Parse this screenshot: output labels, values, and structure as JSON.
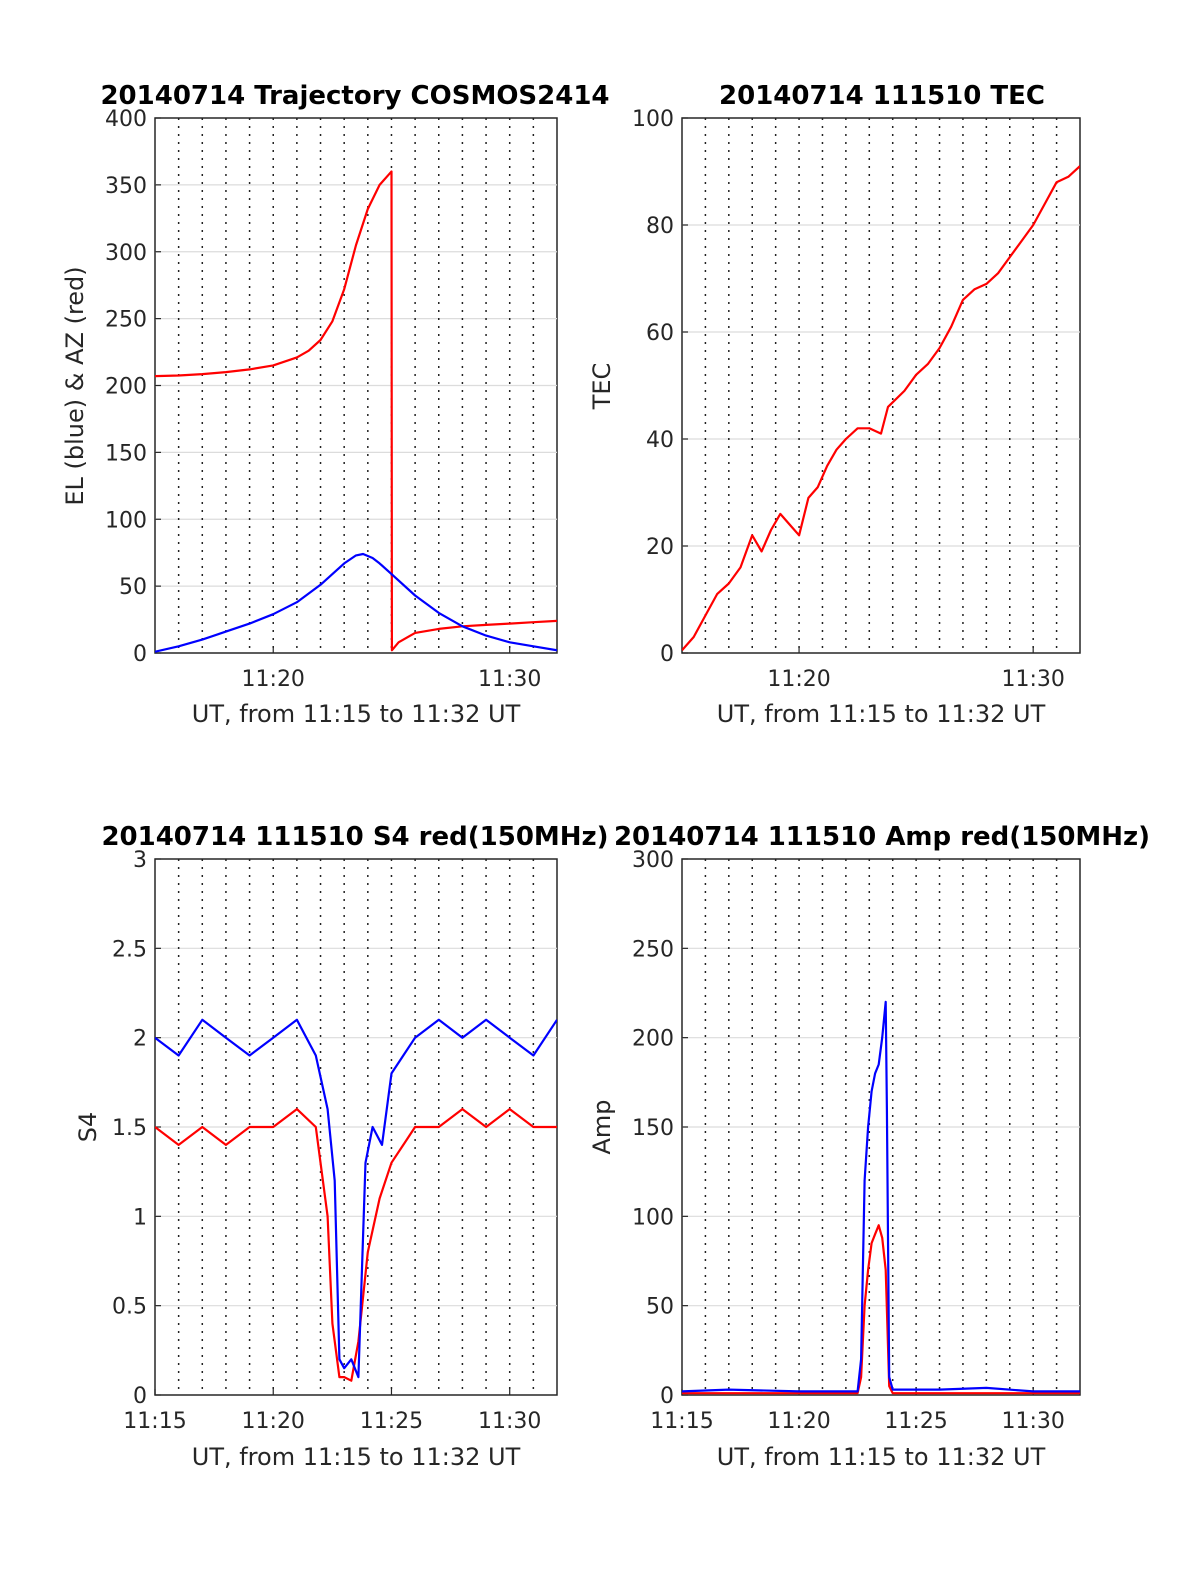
{
  "chart_data": [
    {
      "type": "line",
      "title": "20140714 Trajectory COSMOS2414",
      "xlabel": "UT, from 11:15 to 11:32 UT",
      "ylabel": "EL (blue) & AZ (red)",
      "xlim": [
        15,
        32
      ],
      "ylim": [
        0,
        400
      ],
      "yticks": [
        0,
        50,
        100,
        150,
        200,
        250,
        300,
        350,
        400
      ],
      "xticks": [
        20,
        30
      ],
      "xticklabels": [
        "11:20",
        "11:30"
      ],
      "x_minor_grid_step": 1,
      "grid": "horizontal solid at y-ticks, vertical dotted every minute",
      "series": [
        {
          "name": "AZ (red)",
          "color": "#ff0000",
          "x": [
            15,
            16,
            17,
            18,
            19,
            20,
            21,
            21.5,
            22,
            22.5,
            23,
            23.5,
            24,
            24.5,
            24.9,
            25.0,
            25.02,
            25.3,
            26,
            27,
            28,
            29,
            30,
            31,
            32
          ],
          "values": [
            207,
            207.5,
            208.5,
            210,
            212,
            215,
            221,
            226,
            234,
            248,
            272,
            305,
            332,
            350,
            358,
            360,
            2,
            8,
            15,
            18,
            20,
            21,
            22,
            23,
            24
          ]
        },
        {
          "name": "EL (blue)",
          "color": "#0000ff",
          "x": [
            15,
            16,
            17,
            18,
            19,
            20,
            21,
            22,
            22.5,
            23,
            23.5,
            23.8,
            24.2,
            24.5,
            25,
            26,
            27,
            28,
            29,
            30,
            31,
            32
          ],
          "values": [
            1,
            5,
            10,
            16,
            22,
            29,
            38,
            51,
            59,
            67,
            73,
            74,
            71,
            67,
            59,
            43,
            30,
            20,
            13,
            8,
            5,
            2
          ]
        }
      ]
    },
    {
      "type": "line",
      "title": "20140714 111510 TEC",
      "xlabel": "UT, from 11:15 to 11:32 UT",
      "ylabel": "TEC",
      "xlim": [
        15,
        32
      ],
      "ylim": [
        0,
        100
      ],
      "yticks": [
        0,
        20,
        40,
        60,
        80,
        100
      ],
      "xticks": [
        20,
        30
      ],
      "xticklabels": [
        "11:20",
        "11:30"
      ],
      "x_minor_grid_step": 1,
      "grid": "horizontal solid at y-ticks, vertical dotted every minute",
      "series": [
        {
          "name": "TEC",
          "color": "#ff0000",
          "x": [
            15,
            15.5,
            16,
            16.5,
            17,
            17.5,
            18,
            18.4,
            18.8,
            19.2,
            19.6,
            20,
            20.4,
            20.8,
            21.2,
            21.6,
            22,
            22.5,
            23,
            23.5,
            23.8,
            24.5,
            25,
            25.5,
            26,
            26.5,
            27,
            27.5,
            28,
            28.5,
            29,
            29.5,
            30,
            30.5,
            31,
            31.5,
            32
          ],
          "values": [
            0.5,
            3,
            7,
            11,
            13,
            16,
            22,
            19,
            23,
            26,
            24,
            22,
            29,
            31,
            35,
            38,
            40,
            42,
            42,
            41,
            46,
            49,
            52,
            54,
            57,
            61,
            66,
            68,
            69,
            71,
            74,
            77,
            80,
            84,
            88,
            89,
            91
          ]
        }
      ]
    },
    {
      "type": "line",
      "title": "20140714 111510 S4 red(150MHz)",
      "xlabel": "UT, from 11:15 to 11:32 UT",
      "ylabel": "S4",
      "xlim": [
        15,
        32
      ],
      "ylim": [
        0,
        3
      ],
      "yticks": [
        0,
        0.5,
        1,
        1.5,
        2,
        2.5,
        3
      ],
      "xticks": [
        15,
        20,
        25,
        30
      ],
      "xticklabels": [
        "11:15",
        "11:20",
        "11:25",
        "11:30"
      ],
      "x_minor_grid_step": 1,
      "grid": "horizontal solid at y-ticks, vertical dotted every minute",
      "series": [
        {
          "name": "red",
          "color": "#ff0000",
          "x": [
            15,
            16,
            17,
            18,
            19,
            20,
            21,
            21.8,
            22.3,
            22.5,
            22.8,
            23,
            23.3,
            23.6,
            24,
            24.5,
            25,
            25.5,
            26,
            27,
            28,
            29,
            30,
            31,
            32
          ],
          "values": [
            1.5,
            1.4,
            1.5,
            1.4,
            1.5,
            1.5,
            1.6,
            1.5,
            1.0,
            0.4,
            0.1,
            0.1,
            0.08,
            0.3,
            0.8,
            1.1,
            1.3,
            1.4,
            1.5,
            1.5,
            1.6,
            1.5,
            1.6,
            1.5,
            1.5
          ]
        },
        {
          "name": "blue",
          "color": "#0000ff",
          "x": [
            15,
            16,
            17,
            18,
            19,
            20,
            21,
            21.8,
            22.3,
            22.6,
            22.8,
            23,
            23.3,
            23.6,
            23.9,
            24.2,
            24.6,
            25,
            25.5,
            26,
            27,
            28,
            29,
            30,
            31,
            32
          ],
          "values": [
            2.0,
            1.9,
            2.1,
            2.0,
            1.9,
            2.0,
            2.1,
            1.9,
            1.6,
            1.2,
            0.2,
            0.15,
            0.2,
            0.1,
            1.3,
            1.5,
            1.4,
            1.8,
            1.9,
            2.0,
            2.1,
            2.0,
            2.1,
            2.0,
            1.9,
            2.1
          ]
        }
      ]
    },
    {
      "type": "line",
      "title": "20140714 111510 Amp red(150MHz)",
      "xlabel": "UT, from 11:15 to 11:32 UT",
      "ylabel": "Amp",
      "xlim": [
        15,
        32
      ],
      "ylim": [
        0,
        300
      ],
      "yticks": [
        0,
        50,
        100,
        150,
        200,
        250,
        300
      ],
      "xticks": [
        15,
        20,
        25,
        30
      ],
      "xticklabels": [
        "11:15",
        "11:20",
        "11:25",
        "11:30"
      ],
      "x_minor_grid_step": 1,
      "grid": "horizontal solid at y-ticks, vertical dotted every minute",
      "series": [
        {
          "name": "red",
          "color": "#ff0000",
          "x": [
            15,
            20,
            22.5,
            22.65,
            22.8,
            22.95,
            23.1,
            23.25,
            23.4,
            23.55,
            23.7,
            23.85,
            24,
            28,
            32
          ],
          "values": [
            1,
            1,
            1,
            10,
            50,
            70,
            85,
            90,
            95,
            88,
            70,
            5,
            1,
            1,
            1
          ]
        },
        {
          "name": "blue",
          "color": "#0000ff",
          "x": [
            15,
            17,
            20,
            22.5,
            22.65,
            22.8,
            22.95,
            23.1,
            23.25,
            23.4,
            23.55,
            23.7,
            23.75,
            23.85,
            24,
            26,
            28,
            30,
            32
          ],
          "values": [
            2,
            3,
            2,
            2,
            20,
            120,
            150,
            170,
            180,
            185,
            200,
            220,
            160,
            10,
            3,
            3,
            4,
            2,
            2
          ]
        }
      ]
    }
  ]
}
